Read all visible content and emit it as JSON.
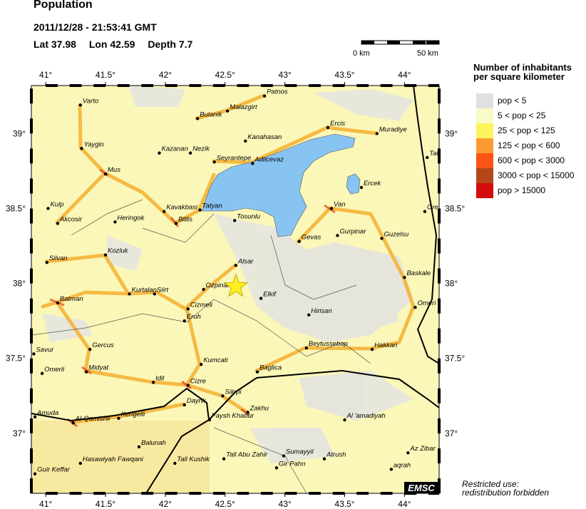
{
  "header": {
    "title": "Population",
    "datetime": "2011/12/28 - 21:53:41 GMT",
    "lat": "Lat 37.98",
    "lon": "Lon  42.59",
    "depth": "Depth  7.7"
  },
  "scale_bar": {
    "start": "0 km",
    "end": "50 km"
  },
  "epicenter": {
    "lat": 37.98,
    "lon": 42.59,
    "color": "#ffee22"
  },
  "axes": {
    "lon_ticks": [
      {
        "v": 41,
        "label": "41°"
      },
      {
        "v": 41.5,
        "label": "41.5°"
      },
      {
        "v": 42,
        "label": "42°"
      },
      {
        "v": 42.5,
        "label": "42.5°"
      },
      {
        "v": 43,
        "label": "43°"
      },
      {
        "v": 43.5,
        "label": "43.5°"
      },
      {
        "v": 44,
        "label": "44°"
      }
    ],
    "lat_ticks": [
      {
        "v": 39,
        "label": "39°"
      },
      {
        "v": 38.5,
        "label": "38.5°"
      },
      {
        "v": 38,
        "label": "38°"
      },
      {
        "v": 37.5,
        "label": "37.5°"
      },
      {
        "v": 37,
        "label": "37°"
      }
    ],
    "lon_range": [
      40.88,
      44.29
    ],
    "lat_range": [
      36.6,
      39.32
    ]
  },
  "legend": {
    "title_line1": "Number of inhabitants",
    "title_line2": "per square kilometer",
    "items": [
      {
        "label": "pop < 5",
        "color": "#e0e0e0"
      },
      {
        "label": "5 < pop < 25",
        "color": "#fafac8"
      },
      {
        "label": "25 < pop < 125",
        "color": "#fcf55e"
      },
      {
        "label": "125 < pop < 600",
        "color": "#fb9a33"
      },
      {
        "label": "600 < pop < 3000",
        "color": "#fc5414"
      },
      {
        "label": "3000 < pop < 15000",
        "color": "#b4461a"
      },
      {
        "label": "pop > 15000",
        "color": "#d40c0c"
      }
    ]
  },
  "water_color": "#88c4f2",
  "cities": [
    {
      "name": "Varto",
      "lon": 41.29,
      "lat": 39.19
    },
    {
      "name": "Patnos",
      "lon": 42.83,
      "lat": 39.25
    },
    {
      "name": "Malazgirt",
      "lon": 42.52,
      "lat": 39.15
    },
    {
      "name": "Bulanik",
      "lon": 42.27,
      "lat": 39.1
    },
    {
      "name": "Ercis",
      "lon": 43.36,
      "lat": 39.04
    },
    {
      "name": "Muradiye",
      "lon": 43.77,
      "lat": 39.0
    },
    {
      "name": "Kanahasan",
      "lon": 42.67,
      "lat": 38.95
    },
    {
      "name": "Yaygin",
      "lon": 41.3,
      "lat": 38.9
    },
    {
      "name": "Kazanan",
      "lon": 41.95,
      "lat": 38.87
    },
    {
      "name": "Nezik",
      "lon": 42.21,
      "lat": 38.87
    },
    {
      "name": "Seyrantepe",
      "lon": 42.41,
      "lat": 38.81
    },
    {
      "name": "Adilcevaz",
      "lon": 42.73,
      "lat": 38.8
    },
    {
      "name": "Tak",
      "lon": 44.19,
      "lat": 38.84
    },
    {
      "name": "Mus",
      "lon": 41.5,
      "lat": 38.73
    },
    {
      "name": "Ercek",
      "lon": 43.64,
      "lat": 38.64
    },
    {
      "name": "Kulp",
      "lon": 41.02,
      "lat": 38.5
    },
    {
      "name": "Tatyan",
      "lon": 42.29,
      "lat": 38.49
    },
    {
      "name": "Kavakbasi",
      "lon": 41.99,
      "lat": 38.48
    },
    {
      "name": "Van",
      "lon": 43.39,
      "lat": 38.5
    },
    {
      "name": "Ore",
      "lon": 44.17,
      "lat": 38.48
    },
    {
      "name": "Akcosir",
      "lon": 41.1,
      "lat": 38.4
    },
    {
      "name": "Heringok",
      "lon": 41.58,
      "lat": 38.41
    },
    {
      "name": "Bitlis",
      "lon": 42.09,
      "lat": 38.4
    },
    {
      "name": "Tosunlu",
      "lon": 42.58,
      "lat": 38.42
    },
    {
      "name": "Gevas",
      "lon": 43.12,
      "lat": 38.28
    },
    {
      "name": "Gurpinar",
      "lon": 43.44,
      "lat": 38.32
    },
    {
      "name": "Guzelsu",
      "lon": 43.81,
      "lat": 38.3
    },
    {
      "name": "Kozluk",
      "lon": 41.5,
      "lat": 38.19
    },
    {
      "name": "Silvan",
      "lon": 41.01,
      "lat": 38.14
    },
    {
      "name": "Alsar",
      "lon": 42.59,
      "lat": 38.12
    },
    {
      "name": "Baskale",
      "lon": 44.0,
      "lat": 38.04
    },
    {
      "name": "Kurtalan",
      "lon": 41.7,
      "lat": 37.93
    },
    {
      "name": "Siirt",
      "lon": 41.91,
      "lat": 37.93
    },
    {
      "name": "Ozpinar",
      "lon": 42.32,
      "lat": 37.96
    },
    {
      "name": "Batman",
      "lon": 41.1,
      "lat": 37.87
    },
    {
      "name": "Elkif",
      "lon": 42.8,
      "lat": 37.9
    },
    {
      "name": "Omeri",
      "lon": 44.09,
      "lat": 37.84
    },
    {
      "name": "Cizmeli",
      "lon": 42.19,
      "lat": 37.83
    },
    {
      "name": "Hirisan",
      "lon": 43.2,
      "lat": 37.79
    },
    {
      "name": "Eruh",
      "lon": 42.16,
      "lat": 37.75
    },
    {
      "name": "Beytussebap",
      "lon": 43.18,
      "lat": 37.57
    },
    {
      "name": "Gercus",
      "lon": 41.37,
      "lat": 37.56
    },
    {
      "name": "Hakkari",
      "lon": 43.73,
      "lat": 37.56
    },
    {
      "name": "Savur",
      "lon": 40.9,
      "lat": 37.53
    },
    {
      "name": "Kumcati",
      "lon": 42.3,
      "lat": 37.46
    },
    {
      "name": "Omerli",
      "lon": 40.97,
      "lat": 37.4
    },
    {
      "name": "Midyat",
      "lon": 41.34,
      "lat": 37.41
    },
    {
      "name": "Baglica",
      "lon": 42.77,
      "lat": 37.41
    },
    {
      "name": "Idil",
      "lon": 41.9,
      "lat": 37.34
    },
    {
      "name": "Cizre",
      "lon": 42.19,
      "lat": 37.32
    },
    {
      "name": "Silopi",
      "lon": 42.48,
      "lat": 37.25
    },
    {
      "name": "Dayrik",
      "lon": 42.16,
      "lat": 37.19
    },
    {
      "name": "Zakhu",
      "lon": 42.69,
      "lat": 37.14
    },
    {
      "name": "Amuda",
      "lon": 40.91,
      "lat": 37.11
    },
    {
      "name": "Kengelli",
      "lon": 41.61,
      "lat": 37.1
    },
    {
      "name": "Al-Qamishli",
      "lon": 41.23,
      "lat": 37.07
    },
    {
      "name": "Faysh Khabur",
      "lon": 42.37,
      "lat": 37.09
    },
    {
      "name": "Al 'amadiyah",
      "lon": 43.5,
      "lat": 37.09
    },
    {
      "name": "Balunah",
      "lon": 41.78,
      "lat": 36.91
    },
    {
      "name": "Az Zibar",
      "lon": 44.03,
      "lat": 36.87
    },
    {
      "name": "Sumayyil",
      "lon": 42.99,
      "lat": 36.85
    },
    {
      "name": "Tall Abu Zahir",
      "lon": 42.49,
      "lat": 36.83
    },
    {
      "name": "Atrush",
      "lon": 43.33,
      "lat": 36.83
    },
    {
      "name": "Hasawiyah Fawqani",
      "lon": 41.29,
      "lat": 36.8
    },
    {
      "name": "Tall Kushik",
      "lon": 42.08,
      "lat": 36.8
    },
    {
      "name": "Gir Pahn",
      "lon": 42.93,
      "lat": 36.77
    },
    {
      "name": "aqrah",
      "lon": 43.89,
      "lat": 36.76
    },
    {
      "name": "Guir Keffar",
      "lon": 40.91,
      "lat": 36.73
    }
  ],
  "logo": "EMSC",
  "notice": {
    "line1": "Restricted use:",
    "line2": "redistribution forbidden"
  }
}
